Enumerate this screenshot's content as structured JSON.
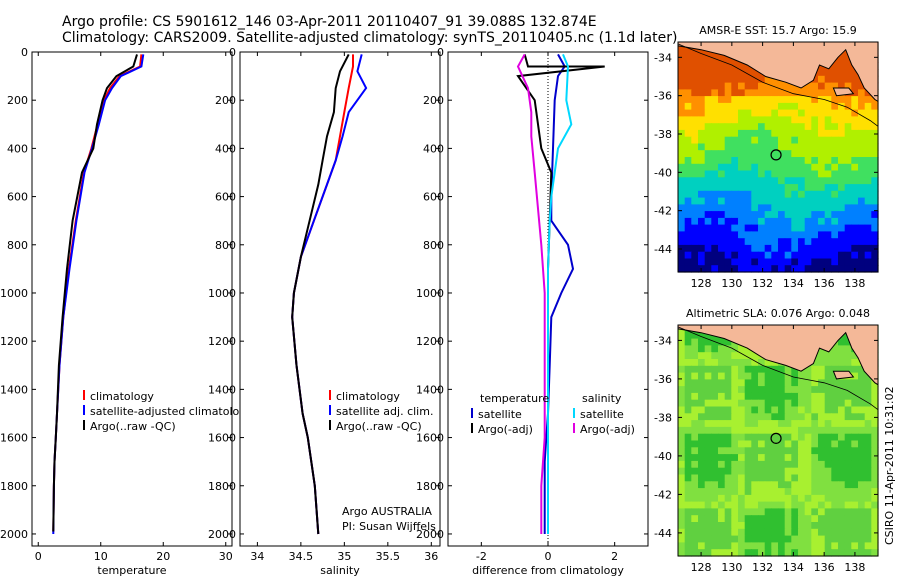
{
  "header": {
    "line1": "Argo profile: CS 5901612_146 03-Apr-2011 20110407_91 39.088S 132.874E",
    "line2": "Climatology: CARS2009. Satellite-adjusted climatology: synTS_20110405.nc (1.1d later)"
  },
  "side_text": "CSIRO 11-Apr-2011 10:31:02",
  "chart_data": [
    {
      "id": "temperature",
      "type": "line",
      "xlabel": "temperature",
      "ylabel": "",
      "xlim": [
        -1,
        31
      ],
      "ylim": [
        2050,
        0
      ],
      "xticks": [
        0,
        10,
        20,
        30
      ],
      "yticks": [
        0,
        200,
        400,
        600,
        800,
        1000,
        1200,
        1400,
        1600,
        1800,
        2000
      ],
      "legend": [
        "climatology",
        "satellite-adjusted climatology",
        "Argo(..raw -QC)"
      ],
      "legend_loc": "lower-right",
      "series": [
        {
          "name": "climatology",
          "color": "#ff0000",
          "x": [
            16.5,
            16.3,
            13.0,
            11.5,
            10.5,
            9.5,
            8.5,
            7.3,
            6.0,
            4.9,
            4.0,
            3.4,
            3.0,
            2.8,
            2.6,
            2.5,
            2.4
          ],
          "y": [
            10,
            60,
            100,
            150,
            200,
            300,
            400,
            500,
            700,
            900,
            1100,
            1300,
            1500,
            1600,
            1700,
            1800,
            1990
          ]
        },
        {
          "name": "satellite-adjusted climatology",
          "color": "#0000ff",
          "x": [
            16.8,
            16.5,
            13.2,
            11.8,
            10.7,
            9.7,
            8.6,
            7.4,
            6.1,
            5.0,
            4.0,
            3.4,
            3.0,
            2.8,
            2.6,
            2.5,
            2.4
          ],
          "y": [
            10,
            60,
            100,
            150,
            200,
            300,
            400,
            500,
            700,
            900,
            1100,
            1300,
            1500,
            1600,
            1700,
            1800,
            2000
          ]
        },
        {
          "name": "Argo(..raw -QC)",
          "color": "#000000",
          "x": [
            15.8,
            15.2,
            12.5,
            11.0,
            10.3,
            9.4,
            8.8,
            7.0,
            5.5,
            4.6,
            3.9,
            3.3,
            3.0,
            2.8,
            2.6,
            2.5,
            2.4
          ],
          "y": [
            10,
            60,
            100,
            150,
            200,
            300,
            400,
            500,
            700,
            900,
            1100,
            1300,
            1500,
            1600,
            1700,
            1800,
            1990
          ]
        }
      ]
    },
    {
      "id": "salinity",
      "type": "line",
      "xlabel": "salinity",
      "ylabel": "",
      "xlim": [
        33.8,
        36.1
      ],
      "ylim": [
        2050,
        0
      ],
      "xticks": [
        34,
        34.5,
        35,
        35.5,
        36
      ],
      "xticklabels": [
        "34",
        "34.5",
        "35",
        "35.5",
        "36"
      ],
      "yticks": [
        0,
        200,
        400,
        600,
        800,
        1000,
        1200,
        1400,
        1600,
        1800,
        2000
      ],
      "legend": [
        "climatology",
        "satellite adj. clim.",
        "Argo(..raw -QC)"
      ],
      "legend_loc": "lower-right",
      "annotation": [
        "Argo AUSTRALIA",
        "PI: Susan Wijffels"
      ],
      "series": [
        {
          "name": "climatology",
          "color": "#ff0000",
          "x": [
            35.1,
            35.1,
            35.05,
            35.0,
            34.95,
            34.9,
            34.8,
            34.65,
            34.5,
            34.42,
            34.4,
            34.45,
            34.52,
            34.58,
            34.62,
            34.66,
            34.7
          ],
          "y": [
            10,
            60,
            150,
            250,
            350,
            450,
            550,
            700,
            850,
            1000,
            1100,
            1300,
            1500,
            1600,
            1700,
            1800,
            2000
          ]
        },
        {
          "name": "satellite adj. clim.",
          "color": "#0000ff",
          "x": [
            35.2,
            35.15,
            35.25,
            35.05,
            34.98,
            34.9,
            34.8,
            34.65,
            34.5,
            34.42,
            34.4,
            34.45,
            34.52,
            34.58,
            34.62,
            34.66,
            34.7
          ],
          "y": [
            10,
            80,
            150,
            250,
            350,
            450,
            550,
            700,
            850,
            1000,
            1100,
            1300,
            1500,
            1600,
            1700,
            1800,
            2000
          ]
        },
        {
          "name": "Argo(..raw -QC)",
          "color": "#000000",
          "x": [
            35.05,
            34.95,
            34.9,
            34.88,
            34.8,
            34.75,
            34.7,
            34.6,
            34.5,
            34.42,
            34.4,
            34.45,
            34.52,
            34.58,
            34.62,
            34.66,
            34.7
          ],
          "y": [
            10,
            80,
            150,
            250,
            350,
            450,
            550,
            700,
            850,
            1000,
            1100,
            1300,
            1500,
            1600,
            1700,
            1800,
            2000
          ]
        }
      ]
    },
    {
      "id": "difference",
      "type": "line",
      "xlabel": "difference from climatology",
      "ylabel": "",
      "xlim": [
        -3.0,
        3.0
      ],
      "ylim": [
        2050,
        0
      ],
      "xticks": [
        -2,
        0,
        2
      ],
      "yticks": [
        0,
        200,
        400,
        600,
        800,
        1000,
        1200,
        1400,
        1600,
        1800,
        2000
      ],
      "legend_left_title": "temperature",
      "legend_right_title": "salinity",
      "legend_left": [
        "satellite",
        "Argo(-adj)"
      ],
      "legend_right": [
        "satellite",
        "Argo(-adj)"
      ],
      "legend_loc": "lower-center",
      "series": [
        {
          "name": "temperature satellite",
          "color": "#0000cc",
          "x": [
            0.3,
            0.5,
            0.3,
            0.2,
            0.15,
            0.1,
            0.1,
            0.6,
            0.75,
            0.4,
            0.1,
            0.05,
            0.0,
            -0.05,
            -0.1,
            -0.1,
            -0.1
          ],
          "y": [
            10,
            60,
            100,
            200,
            400,
            600,
            700,
            800,
            900,
            1000,
            1100,
            1300,
            1500,
            1600,
            1700,
            1800,
            2000
          ]
        },
        {
          "name": "temperature Argo(-adj)",
          "color": "#000000",
          "x": [
            -0.7,
            -0.6,
            1.7,
            -0.9,
            -0.4,
            -0.3,
            -0.2,
            0.1,
            0.05,
            0.0,
            0.0,
            0.0,
            0.0,
            0.0,
            0.0,
            0.0,
            0.0
          ],
          "y": [
            10,
            60,
            60,
            100,
            200,
            300,
            400,
            500,
            700,
            900,
            1100,
            1300,
            1500,
            1600,
            1700,
            1800,
            2000
          ]
        },
        {
          "name": "salinity satellite",
          "color": "#00d8ff",
          "x": [
            0.45,
            0.6,
            0.55,
            0.7,
            0.3,
            0.2,
            0.1,
            0.05,
            0.0,
            0.0,
            0.0,
            0.0,
            0.0,
            0.0,
            0.0,
            0.0,
            0.0
          ],
          "y": [
            10,
            60,
            200,
            300,
            400,
            500,
            600,
            700,
            900,
            1100,
            1300,
            1400,
            1500,
            1600,
            1700,
            1800,
            2000
          ]
        },
        {
          "name": "salinity Argo(-adj)",
          "color": "#e000e0",
          "x": [
            -0.7,
            -0.9,
            -0.6,
            -0.5,
            -0.5,
            -0.4,
            -0.3,
            -0.2,
            -0.15,
            -0.1,
            -0.1,
            -0.1,
            -0.1,
            -0.1,
            -0.15,
            -0.2,
            -0.2
          ],
          "y": [
            10,
            60,
            150,
            250,
            350,
            500,
            650,
            800,
            900,
            1000,
            1100,
            1300,
            1500,
            1600,
            1700,
            1800,
            2000
          ]
        }
      ]
    },
    {
      "id": "sst-map",
      "type": "heatmap",
      "title": "AMSR-E SST: 15.7 Argo: 15.9",
      "xlim": [
        126.5,
        139.5
      ],
      "ylim": [
        -45.2,
        -33.2
      ],
      "xticks": [
        128,
        130,
        132,
        134,
        136,
        138
      ],
      "yticks": [
        -34,
        -36,
        -38,
        -40,
        -42,
        -44
      ],
      "marker": {
        "lon": 132.874,
        "lat": -39.088
      },
      "colors": [
        "#00007f",
        "#0000ff",
        "#0080ff",
        "#00d0c0",
        "#40e060",
        "#b0f000",
        "#ffe000",
        "#ff9000",
        "#e05000"
      ]
    },
    {
      "id": "sla-map",
      "type": "heatmap",
      "title": "Altimetric SLA: 0.076 Argo: 0.048",
      "xlim": [
        126.5,
        139.5
      ],
      "ylim": [
        -45.2,
        -33.2
      ],
      "xticks": [
        128,
        130,
        132,
        134,
        136,
        138
      ],
      "yticks": [
        -34,
        -36,
        -38,
        -40,
        -42,
        -44
      ],
      "marker": {
        "lon": 132.874,
        "lat": -39.088
      },
      "colors": [
        "#30c030",
        "#80e040",
        "#a8f030",
        "#60d040"
      ]
    }
  ]
}
